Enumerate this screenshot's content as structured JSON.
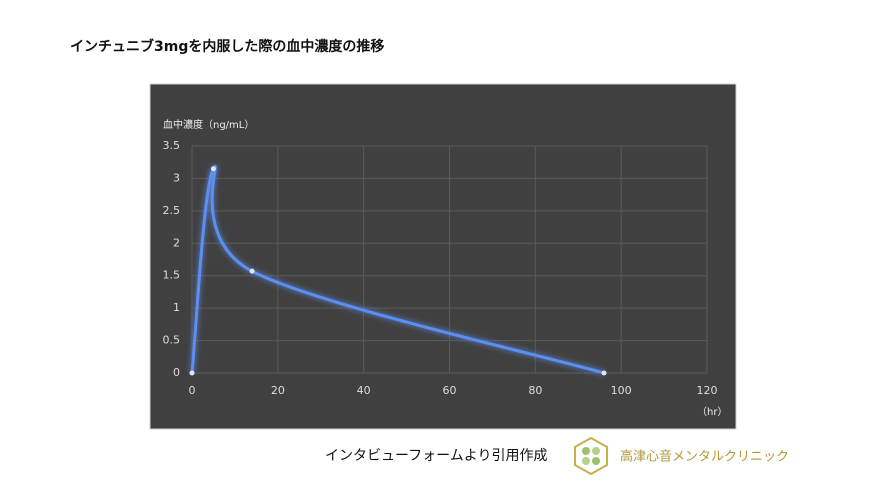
{
  "chart_data": {
    "type": "line",
    "title": "インチュニブ3mgを内服した際の血中濃度の推移",
    "ylabel": "血中濃度（ng/mL）",
    "xlabel": "（hr）",
    "series": [
      {
        "name": "血中濃度",
        "color": "#5b8ff0",
        "x": [
          0,
          5,
          14,
          96
        ],
        "values": [
          0,
          3.15,
          1.57,
          0
        ]
      }
    ],
    "xlim": [
      0,
      120
    ],
    "xticks": [
      0,
      20,
      40,
      60,
      80,
      100,
      120
    ],
    "ylim": [
      0,
      3.5
    ],
    "yticks": [
      0,
      0.5,
      1,
      1.5,
      2,
      2.5,
      3,
      3.5
    ],
    "grid": true,
    "smooth": true
  },
  "source": "インタビューフォームより引用作成",
  "logo_text": "高津心音メンタルクリニック"
}
